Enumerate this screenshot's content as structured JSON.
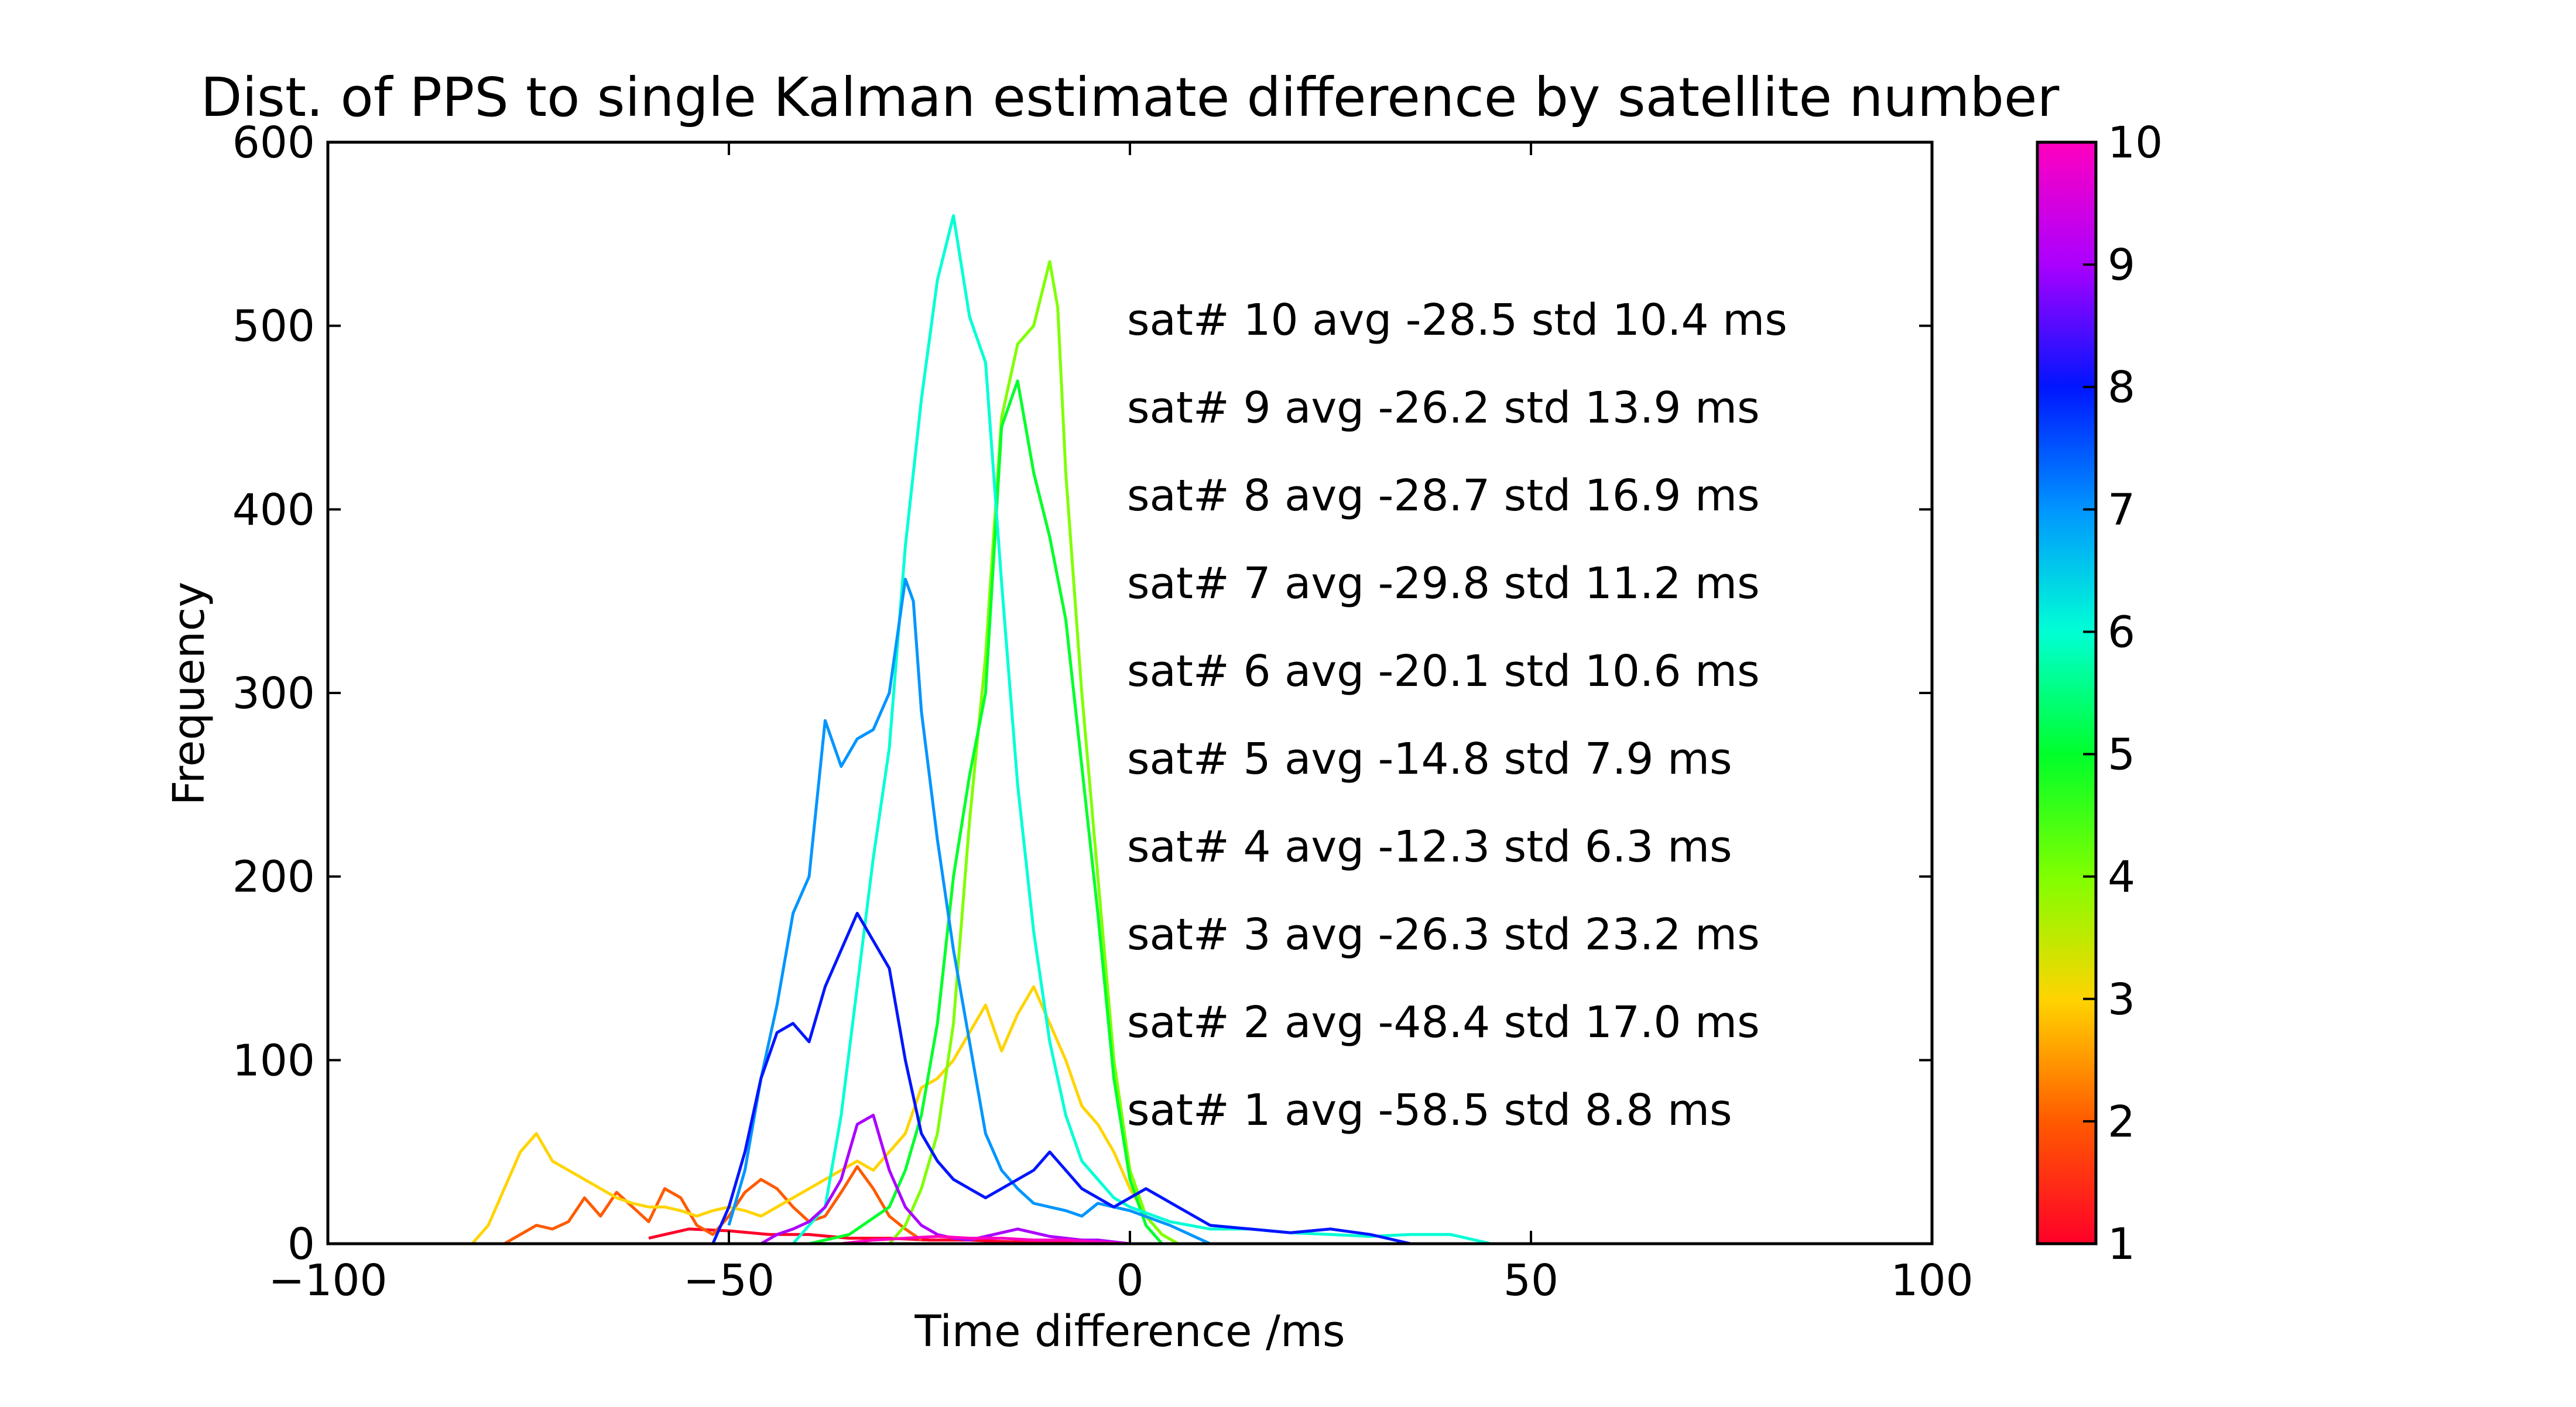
{
  "chart_data": {
    "type": "line",
    "title": "Dist. of PPS to single Kalman estimate difference by satellite number",
    "xlabel": "Time difference /ms",
    "ylabel": "Frequency",
    "xlim": [
      -100,
      100
    ],
    "ylim": [
      0,
      600
    ],
    "xticks": [
      -100,
      -50,
      0,
      50,
      100
    ],
    "xtick_labels": [
      "−100",
      "−50",
      "0",
      "50",
      "100"
    ],
    "yticks": [
      0,
      100,
      200,
      300,
      400,
      500,
      600
    ],
    "ytick_labels": [
      "0",
      "100",
      "200",
      "300",
      "400",
      "500",
      "600"
    ],
    "grid": false,
    "legend": "none",
    "colorbar": {
      "min": 1,
      "max": 10,
      "colormap": "gist_rainbow",
      "ticks": [
        1,
        2,
        3,
        4,
        5,
        6,
        7,
        8,
        9,
        10
      ],
      "tick_labels": [
        "1",
        "2",
        "3",
        "4",
        "5",
        "6",
        "7",
        "8",
        "9",
        "10"
      ]
    },
    "annotations": [
      "sat# 10 avg -28.5 std 10.4 ms",
      "sat# 9 avg -26.2 std 13.9 ms",
      "sat# 8 avg -28.7 std 16.9 ms",
      "sat# 7 avg -29.8 std 11.2 ms",
      "sat# 6 avg -20.1 std 10.6 ms",
      "sat# 5 avg -14.8 std 7.9 ms",
      "sat# 4 avg -12.3 std 6.3 ms",
      "sat# 3 avg -26.3 std 23.2 ms",
      "sat# 2 avg -48.4 std 17.0 ms",
      "sat# 1 avg -58.5 std 8.8 ms"
    ],
    "series": [
      {
        "sat": 1,
        "color": "#ff0029",
        "x": [
          -60,
          -55,
          -50,
          -45,
          -40,
          -35,
          -30,
          -25,
          -20,
          -15,
          -10,
          -5,
          0
        ],
        "y": [
          3,
          8,
          7,
          5,
          5,
          3,
          3,
          2,
          2,
          1,
          1,
          0,
          0
        ]
      },
      {
        "sat": 2,
        "color": "#ff5a00",
        "x": [
          -78,
          -76,
          -74,
          -72,
          -70,
          -68,
          -66,
          -64,
          -62,
          -60,
          -58,
          -56,
          -54,
          -52,
          -50,
          -48,
          -46,
          -44,
          -42,
          -40,
          -38,
          -36,
          -34,
          -32,
          -30,
          -28,
          -26
        ],
        "y": [
          0,
          5,
          10,
          8,
          12,
          25,
          15,
          28,
          20,
          12,
          30,
          25,
          10,
          5,
          15,
          28,
          35,
          30,
          20,
          12,
          15,
          28,
          42,
          30,
          15,
          8,
          2
        ]
      },
      {
        "sat": 3,
        "color": "#ffd400",
        "x": [
          -82,
          -80,
          -78,
          -76,
          -74,
          -72,
          -70,
          -68,
          -66,
          -64,
          -62,
          -60,
          -58,
          -56,
          -54,
          -52,
          -50,
          -48,
          -46,
          -44,
          -42,
          -40,
          -38,
          -36,
          -34,
          -32,
          -30,
          -28,
          -26,
          -24,
          -22,
          -20,
          -18,
          -16,
          -14,
          -12,
          -10,
          -8,
          -6,
          -4,
          -2,
          0,
          2,
          4,
          6
        ],
        "y": [
          0,
          10,
          30,
          50,
          60,
          45,
          40,
          35,
          30,
          25,
          22,
          20,
          20,
          18,
          15,
          18,
          20,
          18,
          15,
          20,
          25,
          30,
          35,
          40,
          45,
          40,
          50,
          60,
          85,
          90,
          100,
          115,
          130,
          105,
          125,
          140,
          120,
          100,
          75,
          65,
          50,
          30,
          15,
          5,
          0
        ]
      },
      {
        "sat": 4,
        "color": "#80ff00",
        "x": [
          -30,
          -28,
          -26,
          -24,
          -22,
          -20,
          -18,
          -16,
          -14,
          -12,
          -10,
          -9,
          -8,
          -6,
          -4,
          -2,
          0,
          2,
          4,
          6
        ],
        "y": [
          0,
          10,
          30,
          60,
          120,
          230,
          320,
          450,
          490,
          500,
          535,
          510,
          420,
          300,
          200,
          100,
          40,
          15,
          5,
          0
        ]
      },
      {
        "sat": 5,
        "color": "#00ff2a",
        "x": [
          -40,
          -35,
          -30,
          -28,
          -26,
          -24,
          -22,
          -20,
          -18,
          -16,
          -14,
          -12,
          -10,
          -8,
          -6,
          -4,
          -2,
          0,
          2,
          4
        ],
        "y": [
          0,
          5,
          20,
          40,
          70,
          120,
          200,
          255,
          300,
          445,
          470,
          420,
          385,
          340,
          260,
          180,
          90,
          35,
          10,
          0
        ]
      },
      {
        "sat": 6,
        "color": "#00ffd5",
        "x": [
          -42,
          -38,
          -36,
          -34,
          -32,
          -30,
          -28,
          -26,
          -24,
          -22,
          -20,
          -18,
          -16,
          -14,
          -12,
          -10,
          -8,
          -6,
          -4,
          -2,
          0,
          5,
          10,
          15,
          20,
          25,
          30,
          35,
          40,
          45
        ],
        "y": [
          0,
          20,
          70,
          140,
          210,
          270,
          380,
          460,
          525,
          560,
          505,
          480,
          360,
          250,
          170,
          110,
          70,
          45,
          35,
          25,
          20,
          12,
          8,
          8,
          6,
          5,
          4,
          5,
          5,
          0
        ]
      },
      {
        "sat": 7,
        "color": "#0095ff",
        "x": [
          -50,
          -48,
          -46,
          -44,
          -42,
          -40,
          -38,
          -36,
          -34,
          -32,
          -30,
          -28,
          -27,
          -26,
          -24,
          -22,
          -20,
          -18,
          -16,
          -14,
          -12,
          -10,
          -8,
          -6,
          -4,
          -2,
          0,
          5,
          10
        ],
        "y": [
          10,
          40,
          90,
          130,
          180,
          200,
          285,
          260,
          275,
          280,
          300,
          362,
          350,
          290,
          220,
          160,
          110,
          60,
          40,
          30,
          22,
          20,
          18,
          15,
          22,
          20,
          18,
          10,
          0
        ]
      },
      {
        "sat": 8,
        "color": "#0015ff",
        "x": [
          -52,
          -50,
          -48,
          -46,
          -44,
          -42,
          -40,
          -38,
          -36,
          -34,
          -32,
          -30,
          -28,
          -26,
          -24,
          -22,
          -20,
          -18,
          -16,
          -14,
          -12,
          -10,
          -8,
          -6,
          -4,
          -2,
          0,
          2,
          4,
          6,
          8,
          10,
          15,
          20,
          25,
          30,
          35
        ],
        "y": [
          0,
          20,
          50,
          90,
          115,
          120,
          110,
          140,
          160,
          180,
          165,
          150,
          100,
          60,
          45,
          35,
          30,
          25,
          30,
          35,
          40,
          50,
          40,
          30,
          25,
          20,
          25,
          30,
          25,
          20,
          15,
          10,
          8,
          6,
          8,
          5,
          0
        ]
      },
      {
        "sat": 9,
        "color": "#aa00ff",
        "x": [
          -46,
          -44,
          -42,
          -40,
          -38,
          -36,
          -34,
          -32,
          -30,
          -28,
          -26,
          -24,
          -22,
          -20,
          -18,
          -16,
          -14,
          -12,
          -10,
          -8,
          -6,
          -4,
          -2,
          0
        ],
        "y": [
          0,
          5,
          8,
          12,
          20,
          35,
          65,
          70,
          40,
          20,
          10,
          5,
          3,
          2,
          4,
          6,
          8,
          6,
          4,
          3,
          2,
          2,
          1,
          0
        ]
      },
      {
        "sat": 10,
        "color": "#ff00bf",
        "x": [
          -36,
          -32,
          -28,
          -24,
          -20,
          -16,
          -12,
          -8,
          -4,
          0
        ],
        "y": [
          0,
          2,
          3,
          4,
          3,
          3,
          2,
          2,
          1,
          0
        ]
      }
    ]
  }
}
